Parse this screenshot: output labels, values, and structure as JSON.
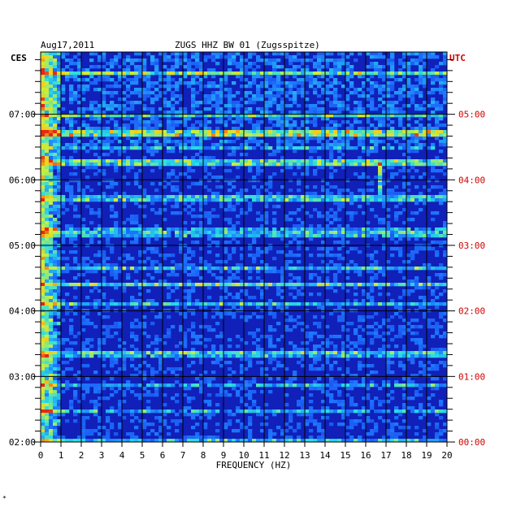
{
  "header": {
    "date": "Aug17,2011",
    "station": "ZUGS HHZ BW 01 (Zugsspitze)",
    "left_zone": "CES",
    "right_zone": "UTC"
  },
  "corner_mark": "*",
  "colors": {
    "background_blue": "#1020b8",
    "utc_label": "#d00000",
    "axis": "#000000"
  },
  "chart_data": {
    "type": "heatmap",
    "title": "ZUGS HHZ BW 01 (Zugsspitze)",
    "xlabel": "FREQUENCY (HZ)",
    "xlim": [
      0,
      20
    ],
    "x_ticks": [
      0,
      1,
      2,
      3,
      4,
      5,
      6,
      7,
      8,
      9,
      10,
      11,
      12,
      13,
      14,
      15,
      16,
      17,
      18,
      19,
      20
    ],
    "left_time_zone": "CES",
    "right_time_zone": "UTC",
    "left_time_ticks": [
      "02:00",
      "03:00",
      "04:00",
      "05:00",
      "06:00",
      "07:00"
    ],
    "right_time_ticks": [
      "00:00",
      "01:00",
      "02:00",
      "03:00",
      "04:00",
      "05:00"
    ],
    "time_range_utc_hours": [
      0.0,
      5.95
    ],
    "minor_tick_minutes": 10,
    "grid": true,
    "colormap": "blue-cyan-yellow-red",
    "notable_features": [
      {
        "utc_hour": 2.4,
        "description": "broadband horizontal band across all frequencies"
      },
      {
        "utc_hour": 4.25,
        "description": "enhanced band"
      },
      {
        "utc_hour": 4.7,
        "description": "enhanced band"
      },
      {
        "freq_hz": 0.3,
        "description": "persistent low-frequency energy"
      },
      {
        "freq_hz": 16.7,
        "utc_hour": 4.0,
        "description": "narrow spectral line"
      }
    ]
  }
}
